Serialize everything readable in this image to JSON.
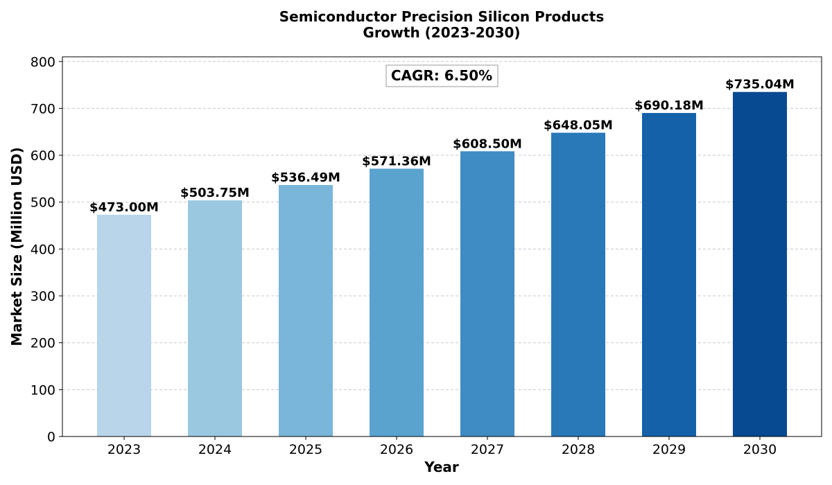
{
  "chart_data": {
    "type": "bar",
    "title_lines": [
      "Semiconductor Precision Silicon Products",
      "Growth (2023-2030)"
    ],
    "xlabel": "Year",
    "ylabel": "Market Size (Million USD)",
    "categories": [
      "2023",
      "2024",
      "2025",
      "2026",
      "2027",
      "2028",
      "2029",
      "2030"
    ],
    "values": [
      473.0,
      503.75,
      536.49,
      571.36,
      608.5,
      648.05,
      690.18,
      735.04
    ],
    "value_labels": [
      "$473.00M",
      "$503.75M",
      "$536.49M",
      "$571.36M",
      "$608.50M",
      "$648.05M",
      "$690.18M",
      "$735.04M"
    ],
    "bar_colors": [
      "#b8d5ea",
      "#9ac8e0",
      "#7ab6d9",
      "#5ba3cf",
      "#3f8bc4",
      "#2979b9",
      "#1461aa",
      "#084a91"
    ],
    "ylim": [
      0,
      810
    ],
    "yticks": [
      0,
      100,
      200,
      300,
      400,
      500,
      600,
      700,
      800
    ],
    "grid": true,
    "annotation": "CAGR: 6.50%"
  }
}
